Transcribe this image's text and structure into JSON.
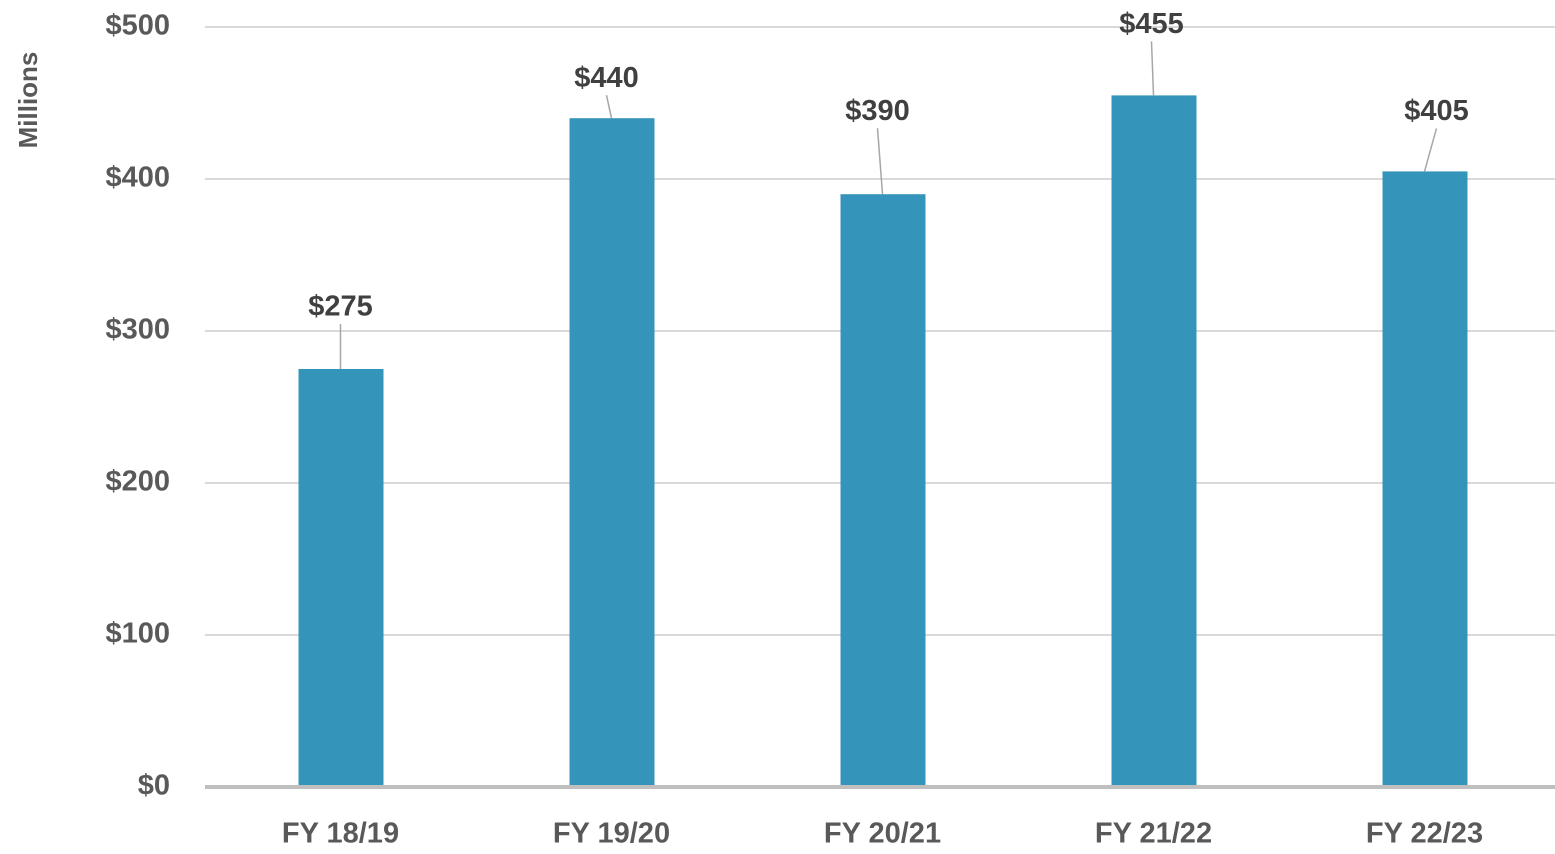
{
  "chart_data": {
    "type": "bar",
    "y_axis_label": "Millions",
    "categories": [
      "FY 18/19",
      "FY 19/20",
      "FY 20/21",
      "FY 21/22",
      "FY 22/23"
    ],
    "values": [
      275,
      440,
      390,
      455,
      405
    ],
    "value_labels": [
      "$275",
      "$440",
      "$390",
      "$455",
      "$405"
    ],
    "color": "#3494ba",
    "ylim": [
      0,
      500
    ],
    "yticks": [
      {
        "value": 0,
        "label": "$0"
      },
      {
        "value": 100,
        "label": "$100"
      },
      {
        "value": 200,
        "label": "$200"
      },
      {
        "value": 300,
        "label": "$300"
      },
      {
        "value": 400,
        "label": "$400"
      },
      {
        "value": 500,
        "label": "$500"
      }
    ],
    "grid": true
  }
}
